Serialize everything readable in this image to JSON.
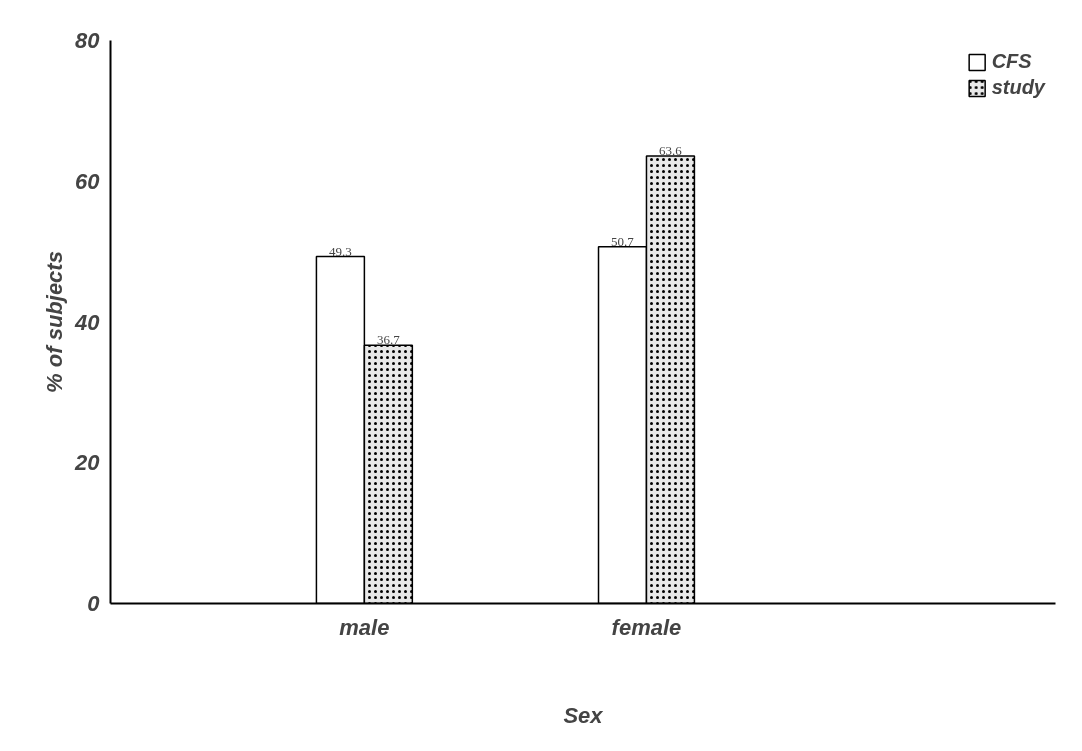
{
  "chart_data": {
    "type": "bar",
    "xlabel": "Sex",
    "ylabel": "% of subjects",
    "categories": [
      "male",
      "female"
    ],
    "series": [
      {
        "name": "CFS",
        "color": "#ffffff",
        "values": [
          49.3,
          50.7
        ]
      },
      {
        "name": "study",
        "color": "#e8e8e8",
        "values": [
          36.7,
          63.6
        ]
      }
    ],
    "ylim": [
      0,
      80
    ],
    "yticks": [
      0,
      20,
      40,
      60,
      80
    ],
    "grid": false,
    "legend": "top right",
    "data_labels": true
  }
}
